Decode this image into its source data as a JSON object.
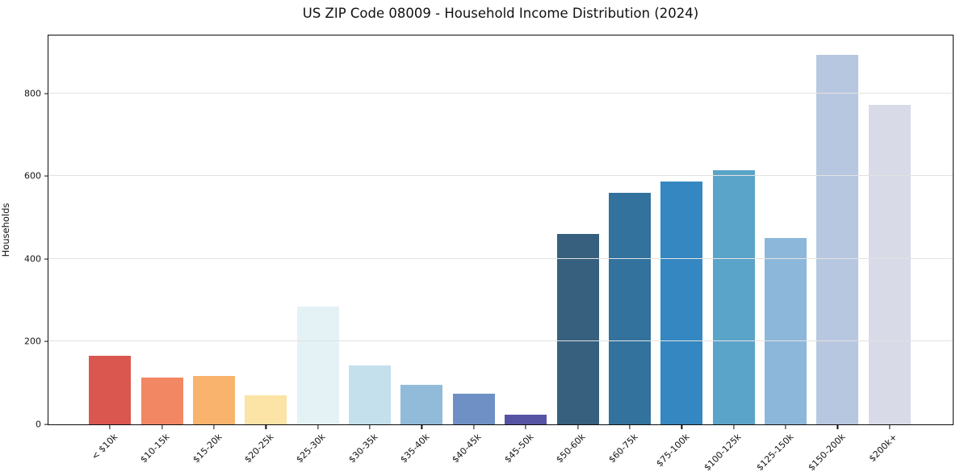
{
  "figure": {
    "background": "#ffffff"
  },
  "chart_data": {
    "type": "bar",
    "title": "US ZIP Code 08009 - Household Income Distribution (2024)",
    "xlabel": "",
    "ylabel": "Households",
    "categories": [
      "< $10k",
      "$10-15k",
      "$15-20k",
      "$20-25k",
      "$25-30k",
      "$30-35k",
      "$35-40k",
      "$40-45k",
      "$45-50k",
      "$50-60k",
      "$60-75k",
      "$75-100k",
      "$100-125k",
      "$125-150k",
      "$150-200k",
      "$200k+"
    ],
    "values": [
      165,
      113,
      117,
      71,
      284,
      142,
      95,
      75,
      24,
      460,
      559,
      587,
      615,
      450,
      893,
      772
    ],
    "bar_colors": [
      "#d9574f",
      "#f28763",
      "#f9b36d",
      "#fce3a6",
      "#e4f2f6",
      "#c3e0ec",
      "#91bbd9",
      "#6e90c4",
      "#5753a4",
      "#36607e",
      "#32729d",
      "#3487c1",
      "#5ba4c9",
      "#8db7da",
      "#b8c7e0",
      "#d8dae8"
    ],
    "yticks": [
      0,
      200,
      400,
      600,
      800
    ],
    "ylim": [
      0,
      940
    ],
    "grid": "horizontal-on-top",
    "gridline_color": "#e2e2e2",
    "legend": "none",
    "spines": "full-box"
  }
}
